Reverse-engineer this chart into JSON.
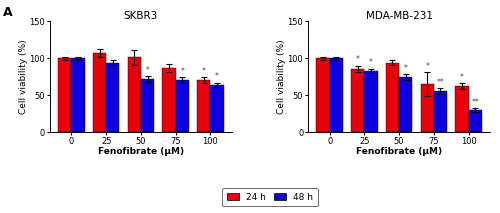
{
  "title_left": "SKBR3",
  "title_right": "MDA-MB-231",
  "xlabel": "Fenofibrate (μM)",
  "ylabel": "Cell viability (%)",
  "categories": [
    0,
    25,
    50,
    75,
    100
  ],
  "ylim": [
    0,
    150
  ],
  "yticks": [
    0,
    50,
    100,
    150
  ],
  "color_24h": "#e8000a",
  "color_48h": "#0c00e0",
  "legend_label_24h": "24 h",
  "legend_label_48h": "48 h",
  "panel_label": "A",
  "SKBR3_24h": [
    100,
    107,
    101,
    87,
    70
  ],
  "SKBR3_48h": [
    100,
    94,
    72,
    71,
    64
  ],
  "SKBR3_24h_err": [
    2,
    5,
    10,
    5,
    4
  ],
  "SKBR3_48h_err": [
    2,
    3,
    4,
    4,
    3
  ],
  "MDA_24h": [
    100,
    86,
    94,
    65,
    62
  ],
  "MDA_48h": [
    100,
    83,
    74,
    55,
    30
  ],
  "MDA_24h_err": [
    2,
    4,
    3,
    16,
    4
  ],
  "MDA_48h_err": [
    2,
    3,
    4,
    4,
    3
  ],
  "SKBR3_annot": [
    {
      "x": 2,
      "bar": "48h",
      "text": "*"
    },
    {
      "x": 3,
      "bar": "48h",
      "text": "*"
    },
    {
      "x": 4,
      "bar": "24h",
      "text": "*"
    },
    {
      "x": 4,
      "bar": "48h",
      "text": "*"
    }
  ],
  "MDA_annot": [
    {
      "x": 1,
      "bar": "24h",
      "text": "*"
    },
    {
      "x": 1,
      "bar": "48h",
      "text": "*"
    },
    {
      "x": 2,
      "bar": "48h",
      "text": "*"
    },
    {
      "x": 3,
      "bar": "24h",
      "text": "*"
    },
    {
      "x": 3,
      "bar": "48h",
      "text": "**"
    },
    {
      "x": 4,
      "bar": "24h",
      "text": "*"
    },
    {
      "x": 4,
      "bar": "48h",
      "text": "**"
    }
  ]
}
